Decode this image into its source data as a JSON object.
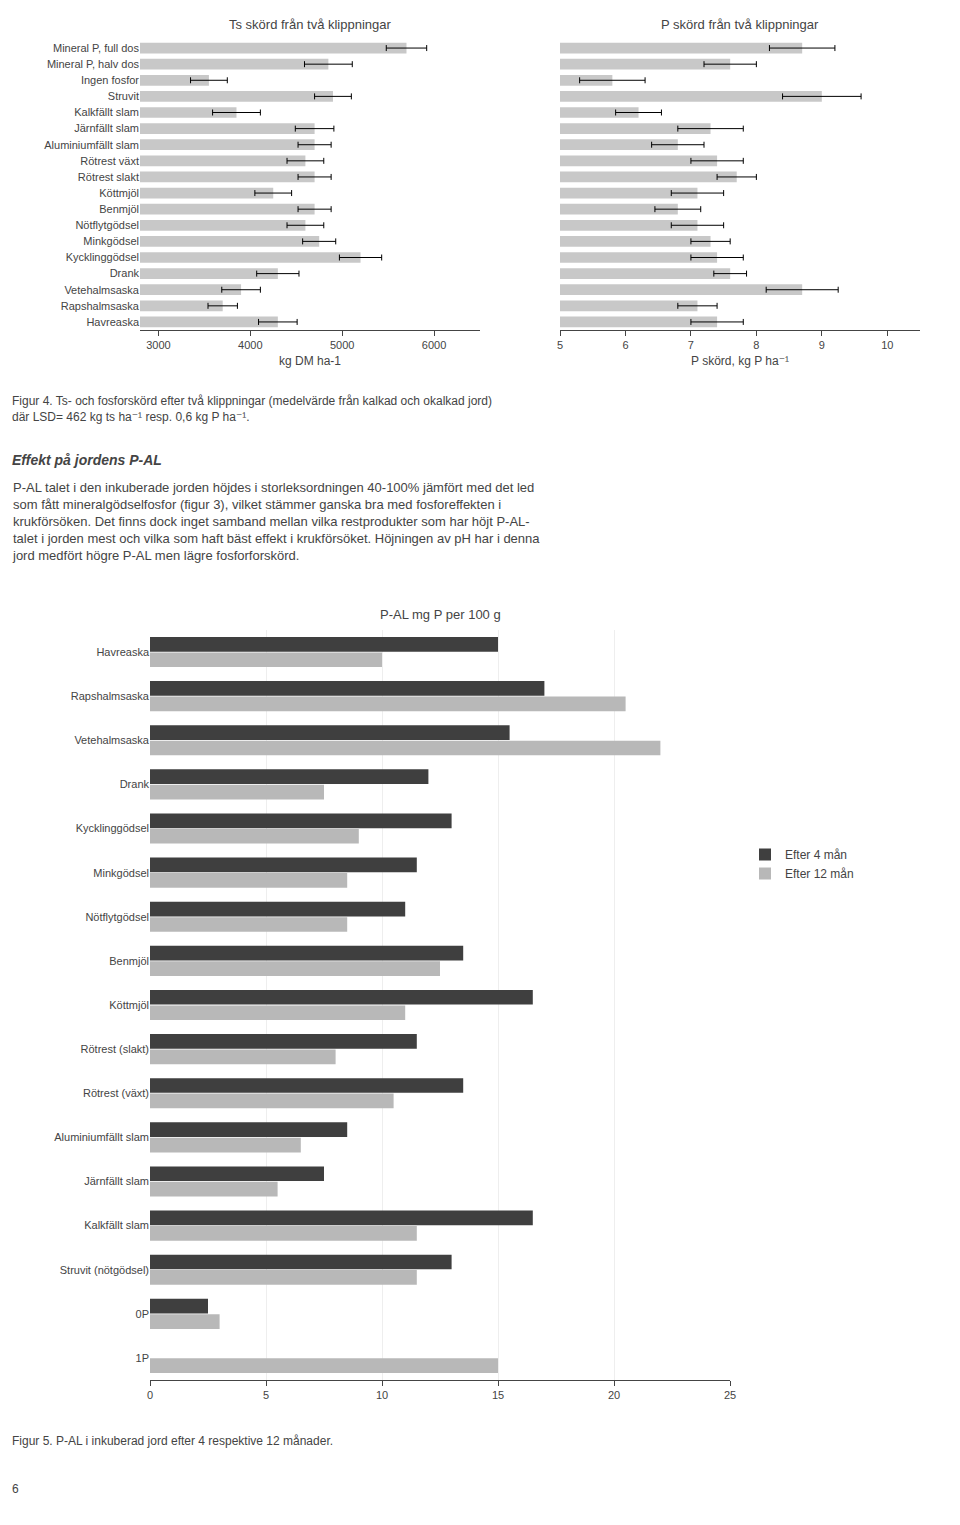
{
  "chart_data": [
    {
      "type": "bar",
      "orientation": "horizontal",
      "title": "Ts skörd från två klippningar",
      "xlabel": "kg DM ha-1",
      "categories": [
        "Mineral P, full dos",
        "Mineral P, halv dos",
        "Ingen fosfor",
        "Struvit",
        "Kalkfällt slam",
        "Järnfällt slam",
        "Aluminiumfällt slam",
        "Rötrest växt",
        "Rötrest slakt",
        "Köttmjöl",
        "Benmjöl",
        "Nötflytgödsel",
        "Minkgödsel",
        "Kycklinggödsel",
        "Drank",
        "Vetehalmsaska",
        "Rapshalmsaska",
        "Havreaska"
      ],
      "values": [
        5700,
        4850,
        3550,
        4900,
        3850,
        4700,
        4700,
        4600,
        4700,
        4250,
        4700,
        4600,
        4750,
        5200,
        4300,
        3900,
        3700,
        4300
      ],
      "errors": [
        220,
        260,
        200,
        200,
        260,
        210,
        180,
        200,
        180,
        200,
        180,
        200,
        180,
        230,
        230,
        210,
        160,
        210
      ],
      "color": "#c8c8c8",
      "xlim": [
        2800,
        6500
      ],
      "xticks": [
        3000,
        4000,
        5000,
        6000
      ],
      "grid": false
    },
    {
      "type": "bar",
      "orientation": "horizontal",
      "title": "P skörd från två klippningar",
      "xlabel": "P skörd, kg P ha⁻¹",
      "categories": [
        "Mineral P, full dos",
        "Mineral P, halv dos",
        "Ingen fosfor",
        "Struvit",
        "Kalkfällt slam",
        "Järnfällt slam",
        "Aluminiumfällt slam",
        "Rötrest växt",
        "Rötrest slakt",
        "Köttmjöl",
        "Benmjöl",
        "Nötflytgödsel",
        "Minkgödsel",
        "Kycklinggödsel",
        "Drank",
        "Vetehalmsaska",
        "Rapshalmsaska",
        "Havreaska"
      ],
      "values": [
        8.7,
        7.6,
        5.8,
        9.0,
        6.2,
        7.3,
        6.8,
        7.4,
        7.7,
        7.1,
        6.8,
        7.1,
        7.3,
        7.4,
        7.6,
        8.7,
        7.1,
        7.4
      ],
      "errors": [
        0.5,
        0.4,
        0.5,
        0.6,
        0.35,
        0.5,
        0.4,
        0.4,
        0.3,
        0.4,
        0.35,
        0.4,
        0.3,
        0.4,
        0.25,
        0.55,
        0.3,
        0.4
      ],
      "color": "#c8c8c8",
      "xlim": [
        5,
        10.5
      ],
      "xticks": [
        5,
        6,
        7,
        8,
        9,
        10
      ],
      "grid": false,
      "tick_labels": "x"
    },
    {
      "type": "bar",
      "orientation": "horizontal",
      "title": "P-AL mg P per 100 g",
      "categories": [
        "Havreaska",
        "Rapshalmsaska",
        "Vetehalmsaska",
        "Drank",
        "Kycklinggödsel",
        "Minkgödsel",
        "Nötflytgödsel",
        "Benmjöl",
        "Köttmjöl",
        "Rötrest (slakt)",
        "Rötrest (växt)",
        "Aluminiumfällt slam",
        "Järnfällt slam",
        "Kalkfällt slam",
        "Struvit (nötgödsel)",
        "0P",
        "1P"
      ],
      "series": [
        {
          "name": "Efter 4 mån",
          "color": "#3f3f3f",
          "values": [
            15.0,
            17.0,
            15.5,
            12.0,
            13.0,
            11.5,
            11.0,
            13.5,
            16.5,
            11.5,
            13.5,
            8.5,
            7.5,
            16.5,
            13.0,
            2.5,
            0.0
          ]
        },
        {
          "name": "Efter 12 mån",
          "color": "#b8b8b8",
          "values": [
            10.0,
            20.5,
            22.0,
            7.5,
            9.0,
            8.5,
            8.5,
            12.5,
            11.0,
            8.0,
            10.5,
            6.5,
            5.5,
            11.5,
            11.5,
            3.0,
            15.0
          ]
        }
      ],
      "xlim": [
        0,
        25
      ],
      "xticks": [
        0,
        5,
        10,
        15,
        20,
        25
      ],
      "grid": true,
      "legend": "right"
    }
  ],
  "caption1": [
    "Figur 4. Ts- och fosforskörd efter två klippningar (medelvärde från kalkad och okalkad jord)",
    "där LSD= 462 kg ts ha⁻¹ resp. 0,6 kg P ha⁻¹."
  ],
  "section_title": "Effekt på jordens P-AL",
  "section_text": [
    "P-AL talet i den inkuberade jorden höjdes i storleksordningen 40-100% jämfört med det led",
    "som fått mineralgödselfosfor (figur 3), vilket stämmer ganska bra med fosforeffekten i",
    "krukförsöken. Det finns dock inget samband mellan vilka restprodukter som har höjt P-AL-",
    "talet i jorden mest och vilka som haft bäst effekt i krukförsöket. Höjningen av pH har i denna",
    "jord medfört högre P-AL men lägre fosforforskörd."
  ],
  "caption2": "Figur 5. P-AL i inkuberad jord efter 4 respektive 12 månader.",
  "page_number": "6"
}
